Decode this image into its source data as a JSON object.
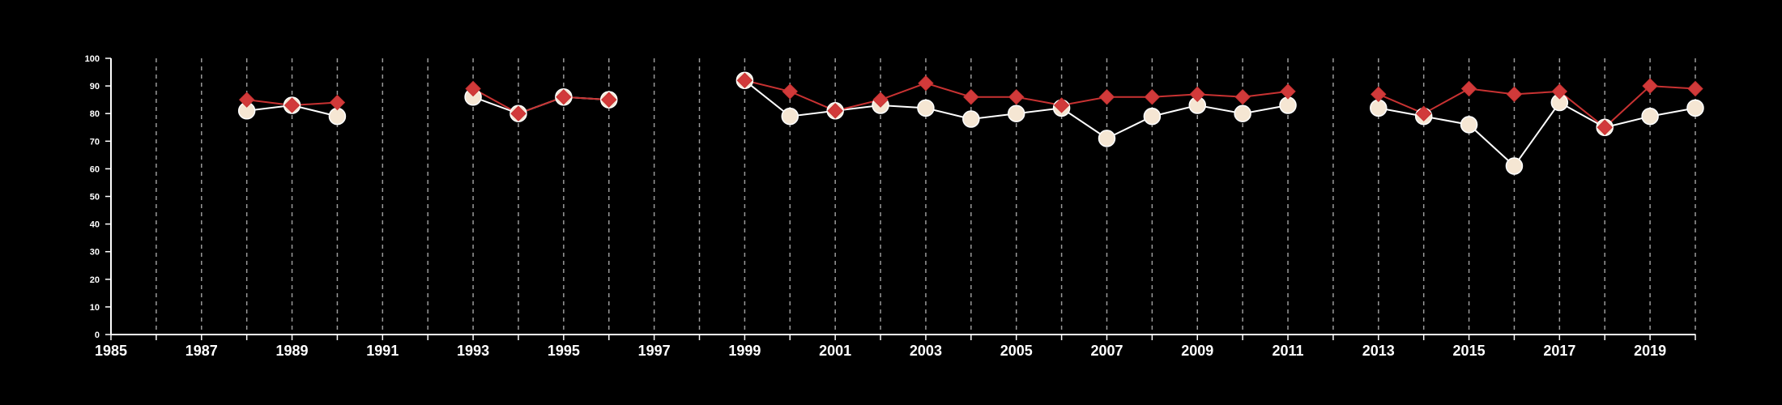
{
  "colors": {
    "background": "#000000",
    "axis": "#ffffff",
    "gridline": "#9a9a9a",
    "series_circle_fill": "#f5e6d3",
    "series_circle_line": "#ffffff",
    "series_diamond_fill": "#d13a3a",
    "series_diamond_line": "#c83232"
  },
  "chart_data": {
    "type": "line",
    "title": "",
    "xlabel": "",
    "ylabel": "",
    "xlim": [
      1985,
      2020
    ],
    "ylim": [
      0,
      100
    ],
    "y_ticks": [
      0,
      10,
      20,
      30,
      40,
      50,
      60,
      70,
      80,
      90,
      100
    ],
    "x_tick_labels": [
      "1985",
      "1987",
      "1989",
      "1991",
      "1993",
      "1995",
      "1997",
      "1999",
      "2001",
      "2003",
      "2005",
      "2007",
      "2009",
      "2011",
      "2013",
      "2015",
      "2017",
      "2019"
    ],
    "vertical_gridlines": "dashed, every year",
    "legend": "none",
    "series": [
      {
        "marker": "circle",
        "points": [
          {
            "x": 1988,
            "y": 81
          },
          {
            "x": 1989,
            "y": 83
          },
          {
            "x": 1990,
            "y": 79
          },
          {
            "x": 1993,
            "y": 86
          },
          {
            "x": 1994,
            "y": 80
          },
          {
            "x": 1995,
            "y": 86
          },
          {
            "x": 1996,
            "y": 85
          },
          {
            "x": 1999,
            "y": 92
          },
          {
            "x": 2000,
            "y": 79
          },
          {
            "x": 2001,
            "y": 81
          },
          {
            "x": 2002,
            "y": 83
          },
          {
            "x": 2003,
            "y": 82
          },
          {
            "x": 2004,
            "y": 78
          },
          {
            "x": 2005,
            "y": 80
          },
          {
            "x": 2006,
            "y": 82
          },
          {
            "x": 2007,
            "y": 71
          },
          {
            "x": 2008,
            "y": 79
          },
          {
            "x": 2009,
            "y": 83
          },
          {
            "x": 2010,
            "y": 80
          },
          {
            "x": 2011,
            "y": 83
          },
          {
            "x": 2013,
            "y": 82
          },
          {
            "x": 2014,
            "y": 79
          },
          {
            "x": 2015,
            "y": 76
          },
          {
            "x": 2016,
            "y": 61
          },
          {
            "x": 2017,
            "y": 84
          },
          {
            "x": 2018,
            "y": 75
          },
          {
            "x": 2019,
            "y": 79
          },
          {
            "x": 2020,
            "y": 82
          }
        ]
      },
      {
        "marker": "diamond",
        "points": [
          {
            "x": 1988,
            "y": 85
          },
          {
            "x": 1989,
            "y": 83
          },
          {
            "x": 1990,
            "y": 84
          },
          {
            "x": 1993,
            "y": 89
          },
          {
            "x": 1994,
            "y": 80
          },
          {
            "x": 1995,
            "y": 86
          },
          {
            "x": 1996,
            "y": 85
          },
          {
            "x": 1999,
            "y": 92
          },
          {
            "x": 2000,
            "y": 88
          },
          {
            "x": 2001,
            "y": 81
          },
          {
            "x": 2002,
            "y": 85
          },
          {
            "x": 2003,
            "y": 91
          },
          {
            "x": 2004,
            "y": 86
          },
          {
            "x": 2005,
            "y": 86
          },
          {
            "x": 2006,
            "y": 83
          },
          {
            "x": 2007,
            "y": 86
          },
          {
            "x": 2008,
            "y": 86
          },
          {
            "x": 2009,
            "y": 87
          },
          {
            "x": 2010,
            "y": 86
          },
          {
            "x": 2011,
            "y": 88
          },
          {
            "x": 2013,
            "y": 87
          },
          {
            "x": 2014,
            "y": 80
          },
          {
            "x": 2015,
            "y": 89
          },
          {
            "x": 2016,
            "y": 87
          },
          {
            "x": 2017,
            "y": 88
          },
          {
            "x": 2018,
            "y": 75
          },
          {
            "x": 2019,
            "y": 90
          },
          {
            "x": 2020,
            "y": 89
          }
        ]
      }
    ]
  }
}
